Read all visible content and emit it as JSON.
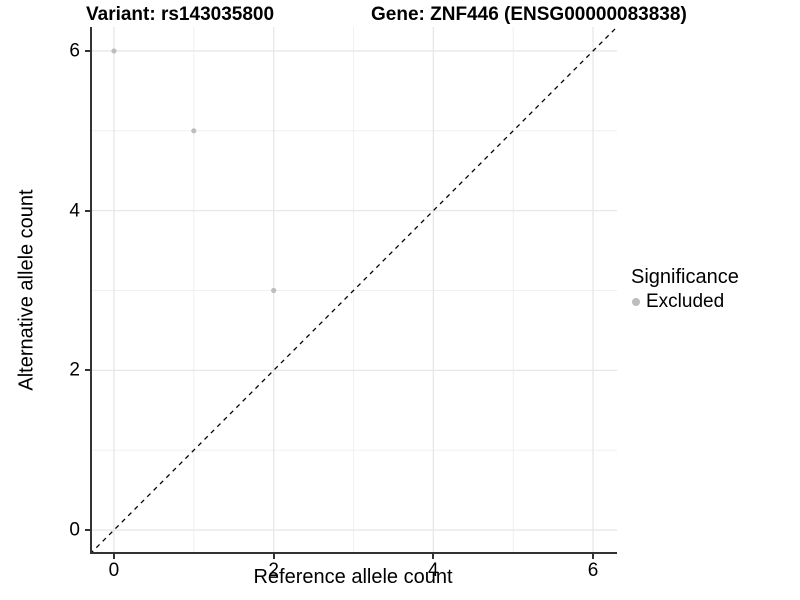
{
  "chart_data": {
    "type": "scatter",
    "title_left": "Variant: rs143035800",
    "title_right": "Gene: ZNF446 (ENSG00000083838)",
    "xlabel": "Reference allele count",
    "ylabel": "Alternative allele count",
    "xlim": [
      -0.3,
      6.3
    ],
    "ylim": [
      -0.3,
      6.3
    ],
    "x_ticks": [
      0,
      2,
      4,
      6
    ],
    "y_ticks": [
      0,
      2,
      4,
      6
    ],
    "gridlines_major": [
      0,
      2,
      4,
      6
    ],
    "gridlines_minor": [
      1,
      3,
      5
    ],
    "grid": true,
    "series": [
      {
        "name": "Excluded",
        "color": "#bdbdbd",
        "points": [
          {
            "x": 0,
            "y": 6
          },
          {
            "x": 1,
            "y": 5
          },
          {
            "x": 2,
            "y": 3
          }
        ]
      }
    ],
    "identity_line": {
      "style": "dashed",
      "equation": "y = x",
      "color": "#000000"
    },
    "legend": {
      "title": "Significance",
      "position": "right",
      "entries": [
        {
          "label": "Excluded",
          "color": "#bdbdbd"
        }
      ]
    },
    "colors": {
      "point": "#bdbdbd",
      "grid_major": "#e7e7e7",
      "grid_minor": "#f0f0f0",
      "axis_line": "#333333",
      "text": "#000000",
      "background": "#ffffff"
    }
  }
}
